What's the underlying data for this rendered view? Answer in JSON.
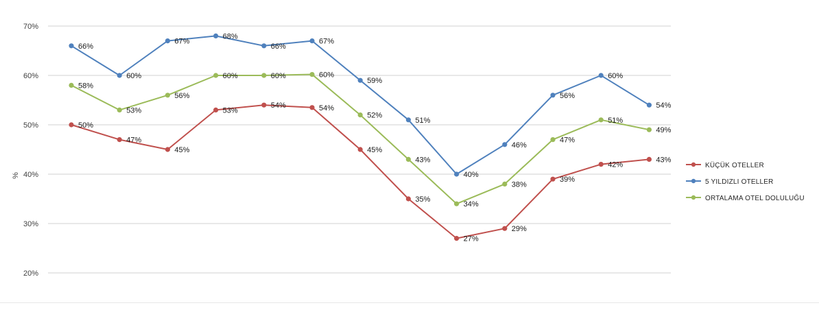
{
  "chart_data": {
    "type": "line",
    "title": "",
    "xlabel": "",
    "ylabel": "%",
    "ylim": [
      20,
      70
    ],
    "yticks": [
      "20%",
      "30%",
      "40%",
      "50%",
      "60%",
      "70%"
    ],
    "ytick_values": [
      20,
      30,
      40,
      50,
      60,
      70
    ],
    "grid": true,
    "legend_position": "right",
    "point_count": 13,
    "series": [
      {
        "name": "KÜÇÜK OTELLER",
        "color": "#c0504d",
        "values": [
          50,
          47,
          45,
          53,
          54,
          53.5,
          45,
          35,
          27,
          29,
          39,
          42,
          43
        ],
        "labels": [
          "50%",
          "47%",
          "45%",
          "53%",
          "54%",
          "54%",
          "45%",
          "35%",
          "27%",
          "29%",
          "39%",
          "42%",
          "43%"
        ]
      },
      {
        "name": "5 YILDIZLI OTELLER",
        "color": "#4f81bd",
        "values": [
          66,
          60,
          67,
          68,
          66,
          67,
          59,
          51,
          40,
          46,
          56,
          60,
          54
        ],
        "labels": [
          "66%",
          "60%",
          "67%",
          "68%",
          "66%",
          "67%",
          "59%",
          "51%",
          "40%",
          "46%",
          "56%",
          "60%",
          "54%"
        ]
      },
      {
        "name": "ORTALAMA OTEL DOLULUĞU",
        "color": "#9bbb59",
        "values": [
          58,
          53,
          56,
          60,
          60,
          60.2,
          52,
          43,
          34,
          38,
          47,
          51,
          49
        ],
        "labels": [
          "58%",
          "53%",
          "56%",
          "60%",
          "60%",
          "60%",
          "52%",
          "43%",
          "34%",
          "38%",
          "47%",
          "51%",
          "49%"
        ]
      }
    ]
  }
}
